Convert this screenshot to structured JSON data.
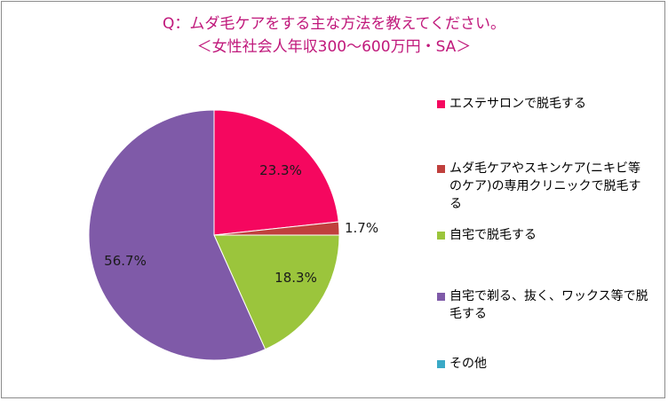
{
  "chart_data": {
    "type": "pie",
    "title": "Q：ムダ毛ケアをする主な方法を教えてください。",
    "subtitle": "＜女性社会人年収300～600万円・SA＞",
    "slices": [
      {
        "label": "エステサロンで脱毛する",
        "value": 23.3,
        "value_label": "23.3%",
        "color": "#f5075f"
      },
      {
        "label": "ムダ毛ケアやスキンケア(ニキビ等のケア)の専用クリニックで脱毛する",
        "value": 1.7,
        "value_label": "1.7%",
        "color": "#c0403d"
      },
      {
        "label": "自宅で脱毛する",
        "value": 18.3,
        "value_label": "18.3%",
        "color": "#9bc53c"
      },
      {
        "label": "自宅で剃る、抜く、ワックス等で脱毛する",
        "value": 56.7,
        "value_label": "56.7%",
        "color": "#7f5aa8"
      },
      {
        "label": "その他",
        "value": 0,
        "value_label": "",
        "color": "#3aa9c6"
      }
    ],
    "legend_position": "right"
  }
}
